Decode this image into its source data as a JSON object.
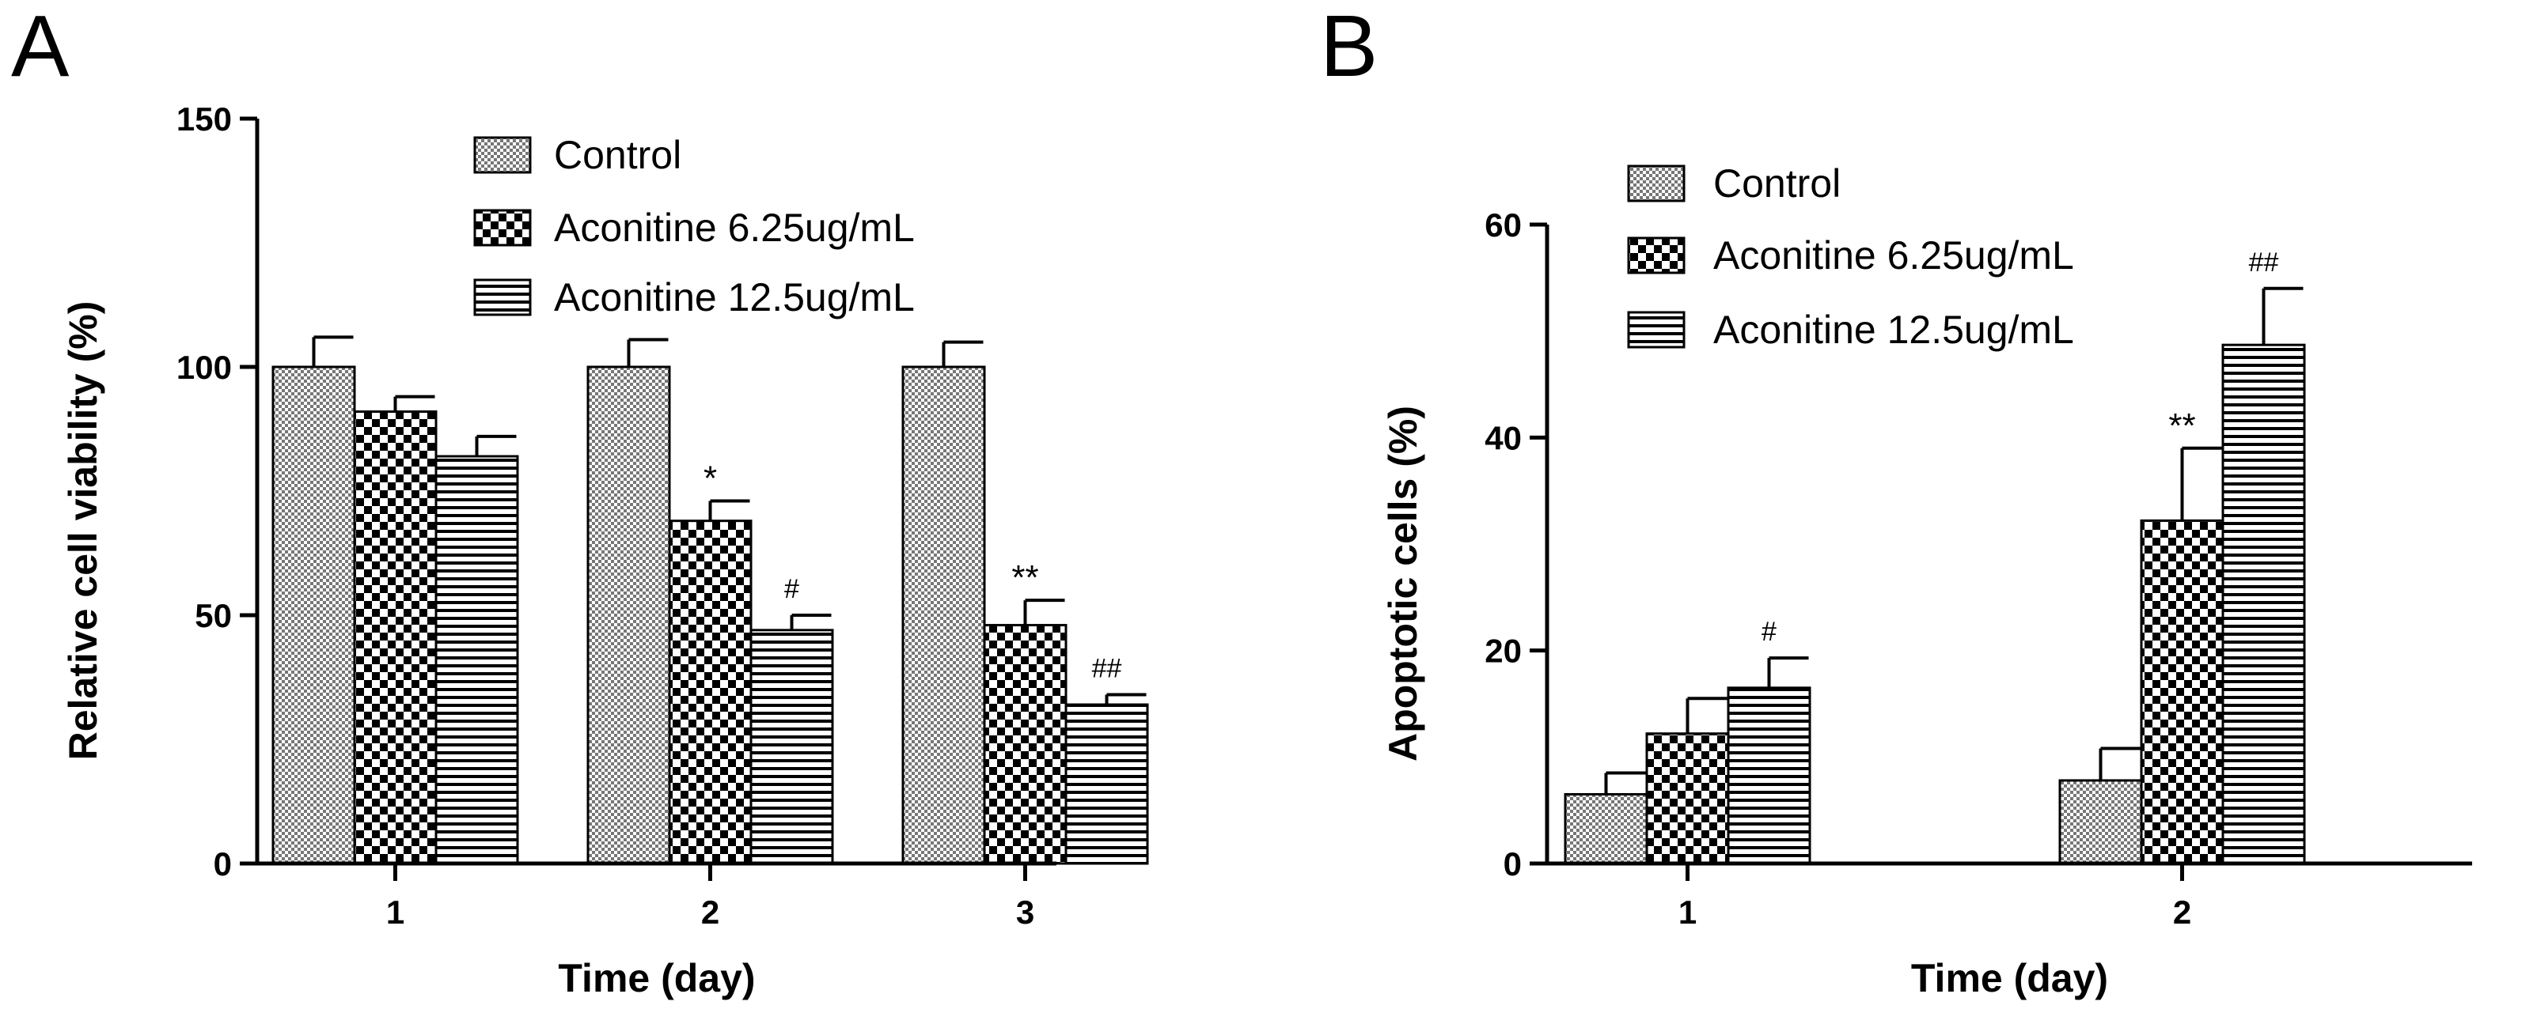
{
  "chart_data": [
    {
      "panel": "A",
      "type": "bar",
      "xlabel": "Time (day)",
      "ylabel": "Relative cell viability (%)",
      "ylim": [
        0,
        150
      ],
      "yticks": [
        0,
        50,
        100,
        150
      ],
      "categories": [
        "1",
        "2",
        "3"
      ],
      "series": [
        {
          "name": "Control",
          "pattern": "fine",
          "values": [
            100,
            100,
            100
          ],
          "errors": [
            6,
            5.5,
            5
          ]
        },
        {
          "name": "Aconitine 6.25ug/mL",
          "pattern": "check",
          "values": [
            91,
            69,
            48
          ],
          "errors": [
            3,
            4,
            5
          ]
        },
        {
          "name": "Aconitine 12.5ug/mL",
          "pattern": "stripe",
          "values": [
            82,
            47,
            32
          ],
          "errors": [
            4,
            3,
            2
          ]
        }
      ],
      "annotations": [
        {
          "category": 1,
          "series": 1,
          "text": "*"
        },
        {
          "category": 1,
          "series": 2,
          "text": "#"
        },
        {
          "category": 2,
          "series": 1,
          "text": "**"
        },
        {
          "category": 2,
          "series": 2,
          "text": "##"
        }
      ],
      "legend_position": "top-right"
    },
    {
      "panel": "B",
      "type": "bar",
      "xlabel": "Time (day)",
      "ylabel": "Apoptotic cells (%)",
      "ylim": [
        0,
        60
      ],
      "yticks": [
        0,
        20,
        40,
        60
      ],
      "categories": [
        "1",
        "2"
      ],
      "series": [
        {
          "name": "Control",
          "pattern": "fine",
          "values": [
            6.5,
            7.8
          ],
          "errors": [
            2,
            3
          ]
        },
        {
          "name": "Aconitine 6.25ug/mL",
          "pattern": "check",
          "values": [
            12.2,
            32.2
          ],
          "errors": [
            3.3,
            6.8
          ]
        },
        {
          "name": "Aconitine 12.5ug/mL",
          "pattern": "stripe",
          "values": [
            16.5,
            48.7
          ],
          "errors": [
            2.8,
            5.3
          ]
        }
      ],
      "annotations": [
        {
          "category": 0,
          "series": 2,
          "text": "#"
        },
        {
          "category": 1,
          "series": 1,
          "text": "**"
        },
        {
          "category": 1,
          "series": 2,
          "text": "##"
        }
      ],
      "legend_position": "top-left"
    }
  ]
}
